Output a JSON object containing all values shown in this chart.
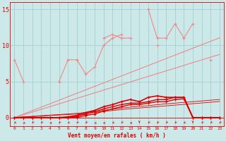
{
  "x": [
    0,
    1,
    2,
    3,
    4,
    5,
    6,
    7,
    8,
    9,
    10,
    11,
    12,
    13,
    14,
    15,
    16,
    17,
    18,
    19,
    20,
    21,
    22,
    23
  ],
  "light_jagged1": [
    8,
    5,
    null,
    null,
    null,
    5,
    8,
    8,
    null,
    null,
    11,
    11.5,
    11,
    11,
    null,
    15,
    11,
    11,
    13,
    11,
    null,
    null,
    8,
    null
  ],
  "light_jagged2": [
    null,
    null,
    null,
    null,
    null,
    5,
    null,
    8,
    6,
    7,
    10,
    11,
    11.5,
    null,
    null,
    null,
    10,
    null,
    null,
    11,
    13,
    null,
    null,
    null
  ],
  "light_trend1": [
    0,
    0.48,
    0.96,
    1.44,
    1.92,
    2.4,
    2.88,
    3.36,
    3.84,
    4.32,
    4.8,
    5.28,
    5.76,
    6.24,
    6.72,
    7.2,
    7.68,
    8.16,
    8.64,
    9.12,
    9.6,
    10.08,
    10.56,
    11.04
  ],
  "light_trend2": [
    0,
    0.38,
    0.76,
    1.14,
    1.52,
    1.9,
    2.28,
    2.66,
    3.04,
    3.42,
    3.8,
    4.18,
    4.56,
    4.94,
    5.32,
    5.7,
    6.08,
    6.46,
    6.84,
    7.22,
    7.6,
    7.98,
    8.36,
    8.74
  ],
  "dark_series1": [
    0,
    0,
    0,
    0,
    0,
    0,
    0,
    0.2,
    0.5,
    0.8,
    1.2,
    1.5,
    1.8,
    2.0,
    2.0,
    2.2,
    2.5,
    2.5,
    2.8,
    2.8,
    0,
    0,
    0,
    0
  ],
  "dark_series2": [
    0,
    0,
    0,
    0,
    0,
    0,
    0,
    0,
    0.3,
    0.5,
    0.9,
    1.2,
    1.5,
    1.8,
    1.8,
    2.0,
    2.2,
    2.2,
    2.5,
    2.6,
    0,
    0,
    0,
    0
  ],
  "dark_series3": [
    0,
    0,
    0,
    0,
    0,
    0,
    0.1,
    0.3,
    0.7,
    1.0,
    1.5,
    1.8,
    2.2,
    2.5,
    2.2,
    2.8,
    3.0,
    2.8,
    2.8,
    2.8,
    0,
    0,
    0,
    0
  ],
  "dark_trend1": [
    0,
    0.1,
    0.18,
    0.26,
    0.34,
    0.42,
    0.5,
    0.58,
    0.72,
    0.86,
    1.0,
    1.15,
    1.3,
    1.45,
    1.55,
    1.65,
    1.78,
    1.9,
    2.0,
    2.1,
    2.2,
    2.3,
    2.4,
    2.5
  ],
  "dark_trend2": [
    0,
    0.07,
    0.14,
    0.21,
    0.28,
    0.35,
    0.42,
    0.49,
    0.6,
    0.72,
    0.85,
    0.98,
    1.1,
    1.22,
    1.32,
    1.42,
    1.52,
    1.62,
    1.72,
    1.82,
    1.92,
    2.02,
    2.12,
    2.22
  ],
  "background_color": "#cce8e8",
  "grid_color": "#99cccc",
  "light_color": "#f08888",
  "dark_color": "#dd0000",
  "xlabel": "Vent moyen/en rafales ( km/h )",
  "ylim": [
    -1.2,
    16
  ],
  "xlim": [
    -0.5,
    23.5
  ],
  "yticks": [
    0,
    5,
    10,
    15
  ],
  "xticks": [
    0,
    1,
    2,
    3,
    4,
    5,
    6,
    7,
    8,
    9,
    10,
    11,
    12,
    13,
    14,
    15,
    16,
    17,
    18,
    19,
    20,
    21,
    22,
    23
  ],
  "arrows_x": [
    0,
    1,
    2,
    3,
    4,
    5,
    6,
    7,
    8,
    9,
    10,
    11,
    12,
    13,
    14,
    15,
    16,
    17,
    18,
    19,
    20,
    21,
    22,
    23
  ],
  "arrows_angle": [
    210,
    180,
    225,
    225,
    180,
    225,
    210,
    225,
    225,
    180,
    180,
    210,
    225,
    180,
    270,
    225,
    225,
    225,
    225,
    210,
    270,
    225,
    225,
    225
  ]
}
